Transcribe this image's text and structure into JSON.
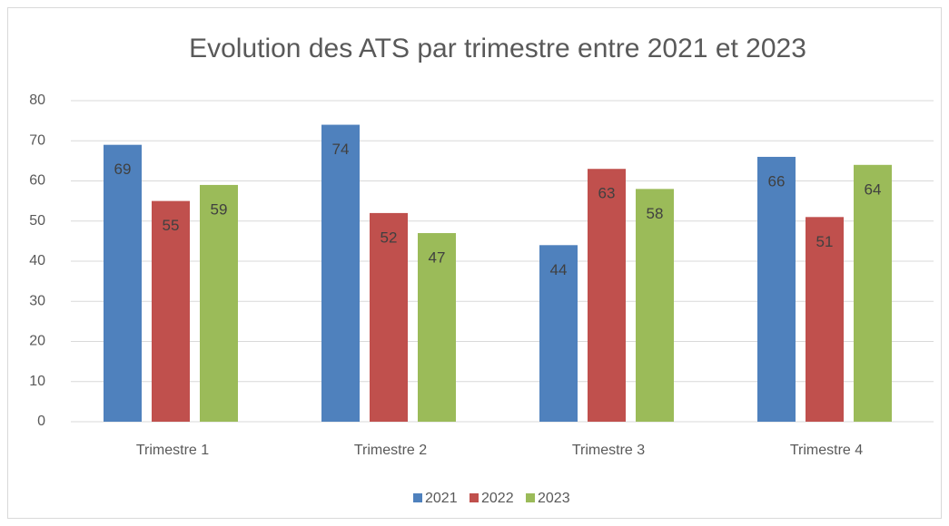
{
  "chart_data": {
    "type": "bar",
    "title": "Evolution des ATS par trimestre entre 2021 et 2023",
    "categories": [
      "Trimestre 1",
      "Trimestre 2",
      "Trimestre 3",
      "Trimestre 4"
    ],
    "series": [
      {
        "name": "2021",
        "color": "#4f81bd",
        "values": [
          69,
          74,
          44,
          66
        ]
      },
      {
        "name": "2022",
        "color": "#c0504d",
        "values": [
          55,
          52,
          63,
          51
        ]
      },
      {
        "name": "2023",
        "color": "#9bbb59",
        "values": [
          59,
          47,
          58,
          64
        ]
      }
    ],
    "ylim": [
      0,
      80
    ],
    "yticks": [
      0,
      10,
      20,
      30,
      40,
      50,
      60,
      70,
      80
    ],
    "grid": true,
    "legend": "bottom"
  }
}
